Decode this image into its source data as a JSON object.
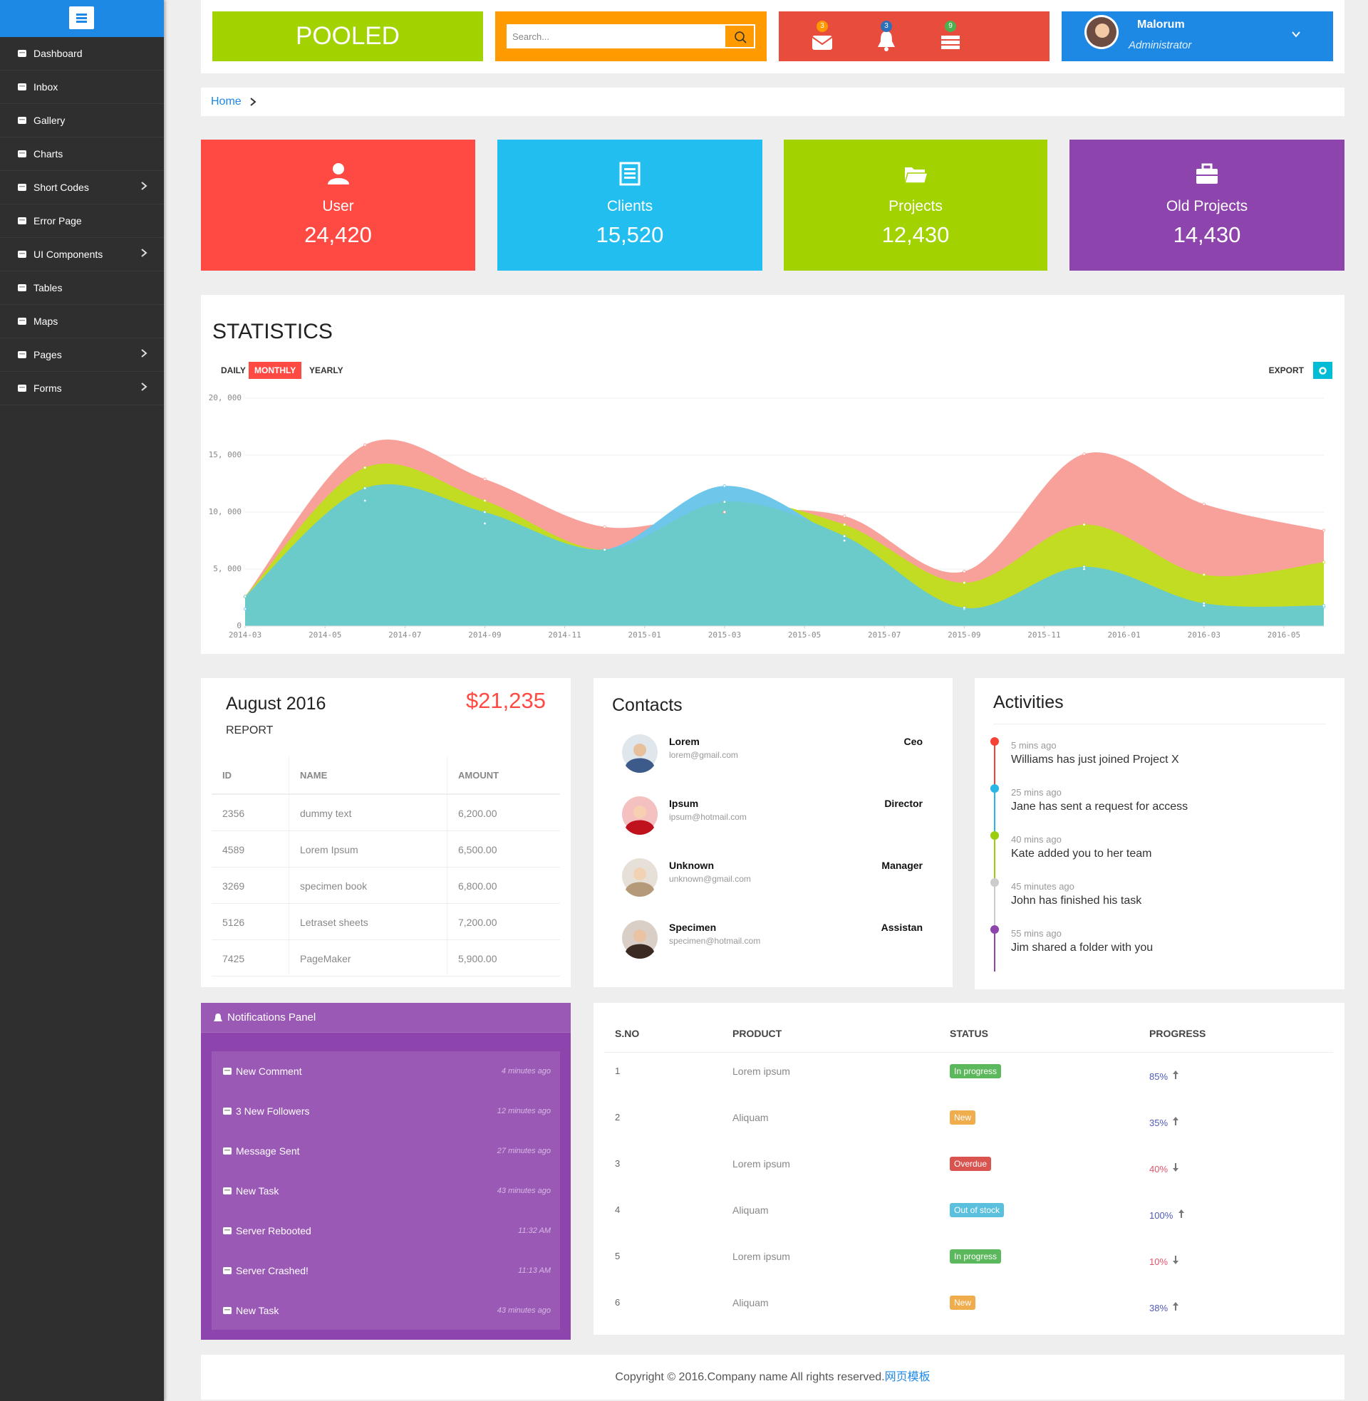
{
  "sidebar": {
    "menu": [
      {
        "label": "Dashboard"
      },
      {
        "label": "Inbox"
      },
      {
        "label": "Gallery"
      },
      {
        "label": "Charts"
      },
      {
        "label": "Short Codes",
        "submenu": true
      },
      {
        "label": "Error Page"
      },
      {
        "label": "UI Components",
        "submenu": true
      },
      {
        "label": "Tables"
      },
      {
        "label": "Maps"
      },
      {
        "label": "Pages",
        "submenu": true
      },
      {
        "label": "Forms",
        "submenu": true
      }
    ]
  },
  "header": {
    "brand": "POOLED",
    "search_placeholder": "Search...",
    "badges": [
      {
        "count": 3,
        "color": "#ff9800"
      },
      {
        "count": 3,
        "color": "#2d6fb8"
      },
      {
        "count": 9,
        "color": "#4caf50"
      }
    ],
    "user": {
      "name": "Malorum",
      "role": "Administrator"
    }
  },
  "breadcrumb": "Home",
  "stats": [
    {
      "label": "User",
      "value": "24,420",
      "color": "#ff4a43"
    },
    {
      "label": "Clients",
      "value": "15,520",
      "color": "#22beef"
    },
    {
      "label": "Projects",
      "value": "12,430",
      "color": "#a2d200"
    },
    {
      "label": "Old Projects",
      "value": "14,430",
      "color": "#8e44ad"
    }
  ],
  "chart_data": {
    "type": "area",
    "title": "STATISTICS",
    "tabs": [
      "DAILY",
      "MONTHLY",
      "YEARLY"
    ],
    "active_tab": 1,
    "export": "EXPORT",
    "x": [
      "2014-03",
      "2014-06",
      "2014-09",
      "2014-12",
      "2015-03",
      "2015-06",
      "2015-09",
      "2015-12",
      "2016-03",
      "2016-06"
    ],
    "series": [
      {
        "color": "#f8a19a",
        "values": [
          2600,
          15900,
          12900,
          8700,
          10000,
          9650,
          4800,
          15100,
          10700,
          8400
        ]
      },
      {
        "color": "#c1dc22",
        "values": [
          2600,
          13900,
          11000,
          6700,
          10900,
          8900,
          3800,
          8900,
          4500,
          5600
        ]
      },
      {
        "color": "#6ec6ea",
        "values": [
          1500,
          11000,
          9000,
          6700,
          12300,
          7500,
          1500,
          5000,
          1800,
          1700
        ]
      },
      {
        "color": "#6bcbca",
        "values": [
          2600,
          12100,
          10000,
          6700,
          10900,
          7900,
          1600,
          5200,
          2000,
          1800
        ]
      }
    ],
    "xlim": [
      "2014-03",
      "2016-06"
    ],
    "xticks": [
      "2014-03",
      "2014-05",
      "2014-07",
      "2014-09",
      "2014-11",
      "2015-01",
      "2015-03",
      "2015-05",
      "2015-07",
      "2015-09",
      "2015-11",
      "2016-01",
      "2016-03",
      "2016-05"
    ],
    "ylim": [
      0,
      20000
    ],
    "yticks": [
      0,
      {
        "value": 5000,
        "label": "5, 000"
      },
      {
        "value": 10000,
        "label": "10, 000"
      },
      {
        "value": 15000,
        "label": "15, 000"
      },
      {
        "value": 20000,
        "label": "20, 000"
      }
    ],
    "grid": true
  },
  "report": {
    "title": "August 2016",
    "amount": "$21,235",
    "subtitle": "REPORT",
    "columns": [
      "ID",
      "NAME",
      "AMOUNT"
    ],
    "rows": [
      [
        "2356",
        "dummy text",
        "6,200.00"
      ],
      [
        "4589",
        "Lorem Ipsum",
        "6,500.00"
      ],
      [
        "3269",
        "specimen book",
        "6,800.00"
      ],
      [
        "5126",
        "Letraset sheets",
        "7,200.00"
      ],
      [
        "7425",
        "PageMaker",
        "5,900.00"
      ]
    ]
  },
  "contacts": {
    "title": "Contacts",
    "items": [
      {
        "name": "Lorem",
        "email": "lorem@gmail.com",
        "role": "Ceo"
      },
      {
        "name": "Ipsum",
        "email": "ipsum@hotmail.com",
        "role": "Director"
      },
      {
        "name": "Unknown",
        "email": "unknown@gmail.com",
        "role": "Manager"
      },
      {
        "name": "Specimen",
        "email": "specimen@hotmail.com",
        "role": "Assistan"
      }
    ]
  },
  "activities": {
    "title": "Activities",
    "items": [
      {
        "time": "5 mins ago",
        "text": "Williams has just joined Project X",
        "color": "#f44336"
      },
      {
        "time": "25 mins ago",
        "text": "Jane has sent a request for access",
        "color": "#29b6e6"
      },
      {
        "time": "40 mins ago",
        "text": "Kate added you to her team",
        "color": "#9ccc10"
      },
      {
        "time": "45 minutes ago",
        "text": "John has finished his task",
        "color": "#cccccc"
      },
      {
        "time": "55 mins ago",
        "text": "Jim shared a folder with you",
        "color": "#8e44ad"
      }
    ]
  },
  "notifications": {
    "title": "Notifications Panel",
    "items": [
      {
        "text": "New Comment",
        "time": "4 minutes ago"
      },
      {
        "text": "3 New Followers",
        "time": "12 minutes ago"
      },
      {
        "text": "Message Sent",
        "time": "27 minutes ago"
      },
      {
        "text": "New Task",
        "time": "43 minutes ago"
      },
      {
        "text": "Server Rebooted",
        "time": "11:32 AM"
      },
      {
        "text": "Server Crashed!",
        "time": "11:13 AM"
      },
      {
        "text": "New Task",
        "time": "43 minutes ago"
      }
    ]
  },
  "products": {
    "columns": [
      "S.NO",
      "PRODUCT",
      "STATUS",
      "PROGRESS"
    ],
    "rows": [
      {
        "sno": "1",
        "product": "Lorem ipsum",
        "status": "In progress",
        "status_color": "#5cb85c",
        "progress": "85%",
        "trend": "up"
      },
      {
        "sno": "2",
        "product": "Aliquam",
        "status": "New",
        "status_color": "#f0ad4e",
        "progress": "35%",
        "trend": "up"
      },
      {
        "sno": "3",
        "product": "Lorem ipsum",
        "status": "Overdue",
        "status_color": "#d9534f",
        "progress": "40%",
        "trend": "down"
      },
      {
        "sno": "4",
        "product": "Aliquam",
        "status": "Out of stock",
        "status_color": "#5bc0de",
        "progress": "100%",
        "trend": "up"
      },
      {
        "sno": "5",
        "product": "Lorem ipsum",
        "status": "In progress",
        "status_color": "#5cb85c",
        "progress": "10%",
        "trend": "down"
      },
      {
        "sno": "6",
        "product": "Aliquam",
        "status": "New",
        "status_color": "#f0ad4e",
        "progress": "38%",
        "trend": "up"
      }
    ]
  },
  "footer": {
    "text": "Copyright © 2016.Company name All rights reserved.",
    "link": "网页模板"
  }
}
